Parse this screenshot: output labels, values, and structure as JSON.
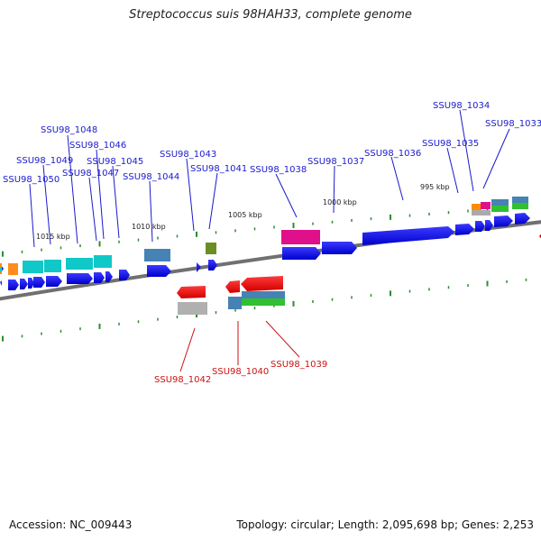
{
  "title": "Streptococcus suis 98HAH33, complete genome",
  "footer": {
    "accession": "Accession: NC_009443",
    "summary": "Topology: circular; Length: 2,095,698 bp; Genes: 2,253"
  },
  "colors": {
    "forward_label": "#1a1acc",
    "reverse_label": "#cc1111",
    "backbone": "#707070",
    "tick": "#2e8b2e"
  },
  "scale_labels": [
    "995 kbp",
    "1000 kbp",
    "1005 kbp",
    "1010 kbp",
    "1015 kbp"
  ],
  "forward_genes": [
    "SSU98_1034",
    "SSU98_1033",
    "SSU98_1035",
    "SSU98_1036",
    "SSU98_1037",
    "SSU98_1038",
    "SSU98_1043",
    "SSU98_1041",
    "SSU98_1044",
    "SSU98_1048",
    "SSU98_1046",
    "SSU98_1049",
    "SSU98_1045",
    "SSU98_1047",
    "SSU98_1050"
  ],
  "reverse_genes": [
    "SSU98_1042",
    "SSU98_1040",
    "SSU98_1039"
  ]
}
